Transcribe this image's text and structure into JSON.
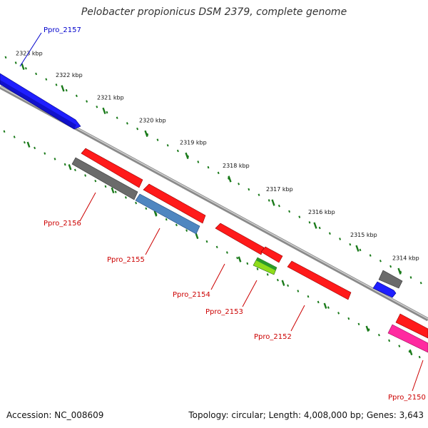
{
  "title": "Pelobacter propionicus DSM 2379, complete genome",
  "footer": {
    "accession": "Accession: NC_008609",
    "summary": "Topology: circular; Length: 4,008,000 bp; Genes: 3,643"
  },
  "scale_labels": [
    "2323 kbp",
    "2322 kbp",
    "2321 kbp",
    "2320 kbp",
    "2319 kbp",
    "2318 kbp",
    "2317 kbp",
    "2316 kbp",
    "2315 kbp",
    "2314 kbp"
  ],
  "genes": [
    {
      "label": "Ppro_2157",
      "color": "#0000ff",
      "label_color": "#0000cc",
      "fill": "#1f1fff"
    },
    {
      "label": "Ppro_2156",
      "color": "#cc0000",
      "label_color": "#cc0000",
      "fill": "#6b6b6b"
    },
    {
      "label": "Ppro_2155",
      "color": "#cc0000",
      "label_color": "#cc0000",
      "fill": "#4f86c0"
    },
    {
      "label": "Ppro_2154",
      "color": "#cc0000",
      "label_color": "#cc0000",
      "fill": "#ff1a1a"
    },
    {
      "label": "Ppro_2153",
      "color": "#cc0000",
      "label_color": "#cc0000",
      "fill": "#8fdc1a"
    },
    {
      "label": "Ppro_2152",
      "color": "#cc0000",
      "label_color": "#cc0000",
      "fill": "#ff1a1a"
    },
    {
      "label": "Ppro_2150",
      "color": "#cc0000",
      "label_color": "#cc0000",
      "fill": "#ff2aa0"
    }
  ],
  "colors": {
    "backbone": "#8a8a8a",
    "scale_tick": "#1a7a1a",
    "forward_red": "#ff1a1a",
    "grey_feature": "#6b6b6b",
    "blue_feature": "#1f1fff",
    "green_feature": "#2a9a2a"
  }
}
